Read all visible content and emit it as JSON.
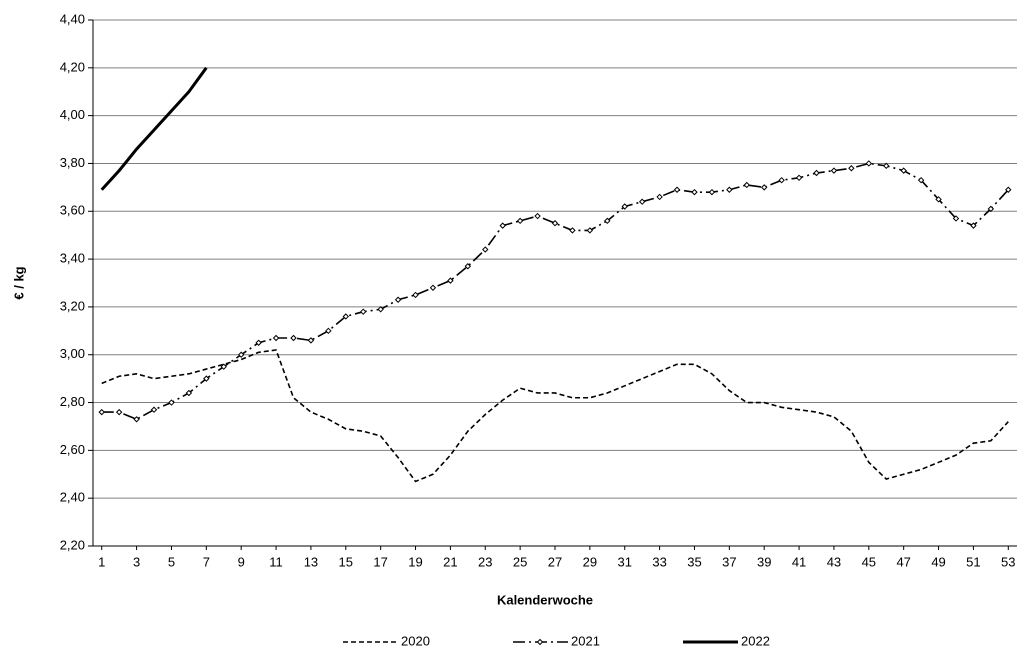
{
  "chart_data": {
    "type": "line",
    "x_label": "Kalenderwoche",
    "y_label": "€ / kg",
    "x": [
      1,
      2,
      3,
      4,
      5,
      6,
      7,
      8,
      9,
      10,
      11,
      12,
      13,
      14,
      15,
      16,
      17,
      18,
      19,
      20,
      21,
      22,
      23,
      24,
      25,
      26,
      27,
      28,
      29,
      30,
      31,
      32,
      33,
      34,
      35,
      36,
      37,
      38,
      39,
      40,
      41,
      42,
      43,
      44,
      45,
      46,
      47,
      48,
      49,
      50,
      51,
      52,
      53
    ],
    "xlim": [
      0.5,
      53.5
    ],
    "xticks": [
      1,
      3,
      5,
      7,
      9,
      11,
      13,
      15,
      17,
      19,
      21,
      23,
      25,
      27,
      29,
      31,
      33,
      35,
      37,
      39,
      41,
      43,
      45,
      47,
      49,
      51,
      53
    ],
    "ylim": [
      2.2,
      4.4
    ],
    "yticks": [
      {
        "value": 2.2,
        "label": "2,20"
      },
      {
        "value": 2.4,
        "label": "2,40"
      },
      {
        "value": 2.6,
        "label": "2,60"
      },
      {
        "value": 2.8,
        "label": "2,80"
      },
      {
        "value": 3.0,
        "label": "3,00"
      },
      {
        "value": 3.2,
        "label": "3,20"
      },
      {
        "value": 3.4,
        "label": "3,40"
      },
      {
        "value": 3.6,
        "label": "3,60"
      },
      {
        "value": 3.8,
        "label": "3,80"
      },
      {
        "value": 4.0,
        "label": "4,00"
      },
      {
        "value": 4.2,
        "label": "4,20"
      },
      {
        "value": 4.4,
        "label": "4,40"
      }
    ],
    "grid": true,
    "legend": "bottom",
    "series": [
      {
        "name": "2020",
        "color": "#000000",
        "values": [
          2.88,
          2.91,
          2.92,
          2.9,
          2.91,
          2.92,
          2.94,
          2.96,
          2.98,
          3.01,
          3.02,
          2.82,
          2.76,
          2.73,
          2.69,
          2.68,
          2.66,
          2.57,
          2.47,
          2.5,
          2.58,
          2.68,
          2.75,
          2.81,
          2.86,
          2.84,
          2.84,
          2.82,
          2.82,
          2.84,
          2.87,
          2.9,
          2.93,
          2.96,
          2.96,
          2.92,
          2.85,
          2.8,
          2.8,
          2.78,
          2.77,
          2.76,
          2.74,
          2.68,
          2.55,
          2.48,
          2.5,
          2.52,
          2.55,
          2.58,
          2.63,
          2.64,
          2.72
        ]
      },
      {
        "name": "2021",
        "color": "#000000",
        "values": [
          2.76,
          2.76,
          2.73,
          2.77,
          2.8,
          2.84,
          2.9,
          2.95,
          3.0,
          3.05,
          3.07,
          3.07,
          3.06,
          3.1,
          3.16,
          3.18,
          3.19,
          3.23,
          3.25,
          3.28,
          3.31,
          3.37,
          3.44,
          3.54,
          3.56,
          3.58,
          3.55,
          3.52,
          3.52,
          3.56,
          3.62,
          3.64,
          3.66,
          3.69,
          3.68,
          3.68,
          3.69,
          3.71,
          3.7,
          3.73,
          3.74,
          3.76,
          3.77,
          3.78,
          3.8,
          3.79,
          3.77,
          3.73,
          3.65,
          3.57,
          3.54,
          3.61,
          3.69
        ]
      },
      {
        "name": "2022",
        "color": "#000000",
        "values": [
          3.69,
          3.77,
          3.86,
          3.94,
          4.02,
          4.1,
          4.2,
          null,
          null,
          null,
          null,
          null,
          null,
          null,
          null,
          null,
          null,
          null,
          null,
          null,
          null,
          null,
          null,
          null,
          null,
          null,
          null,
          null,
          null,
          null,
          null,
          null,
          null,
          null,
          null,
          null,
          null,
          null,
          null,
          null,
          null,
          null,
          null,
          null,
          null,
          null,
          null,
          null,
          null,
          null,
          null,
          null,
          null
        ]
      }
    ]
  }
}
